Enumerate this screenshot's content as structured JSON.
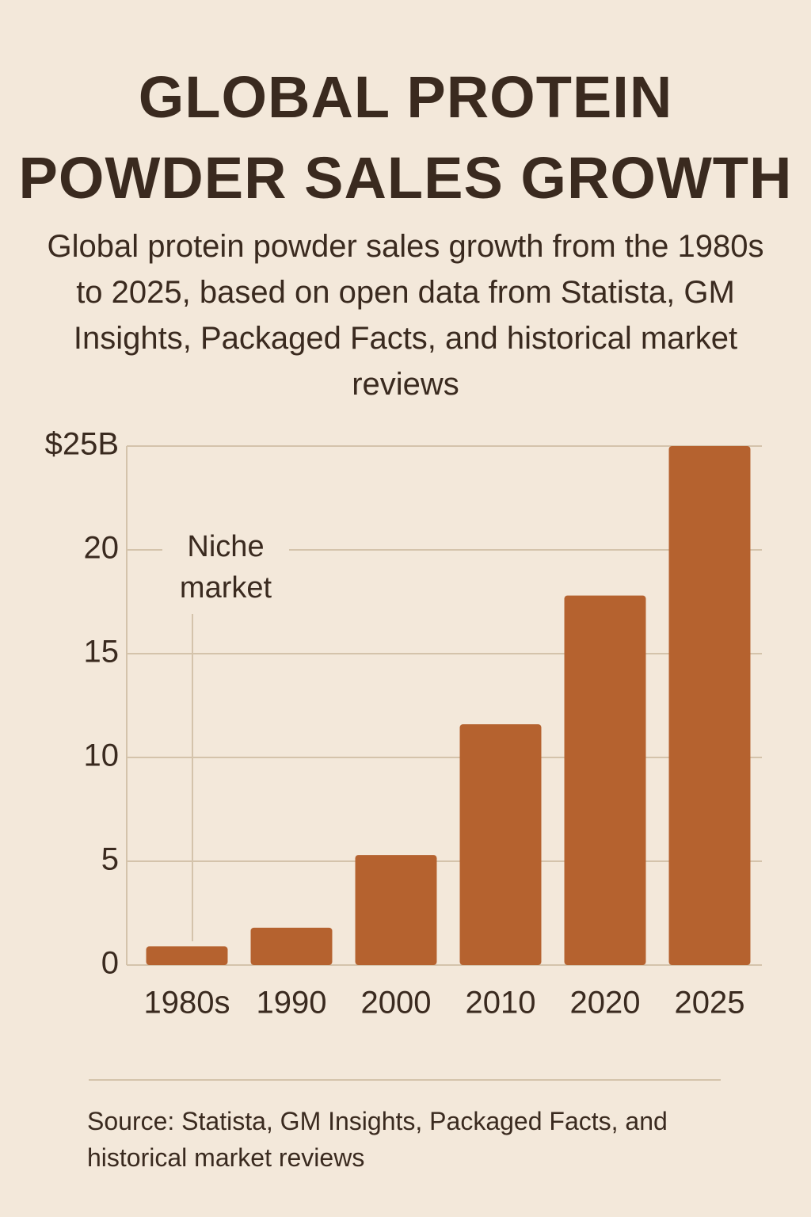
{
  "chart_data": {
    "type": "bar",
    "title": "GLOBAL PROTEIN POWDER SALES GROWTH",
    "subtitle": "Global protein powder sales growth from the 1980s to 2025, based on open data from Statista, GM Insights, Packaged Facts, and historical market reviews",
    "categories": [
      "1980s",
      "1990",
      "2000",
      "2010",
      "2020",
      "2025"
    ],
    "values": [
      0.9,
      1.8,
      5.3,
      11.6,
      17.8,
      25
    ],
    "color": "#b5622f",
    "ylim": [
      0,
      25
    ],
    "yticks": [
      0,
      5,
      10,
      15,
      20,
      {
        "value": 25,
        "label": "$25B"
      }
    ],
    "grid": true,
    "annotation": "Niche market",
    "source": "Source: Statista, GM Insights, Packaged Facts, and historical market reviews"
  }
}
